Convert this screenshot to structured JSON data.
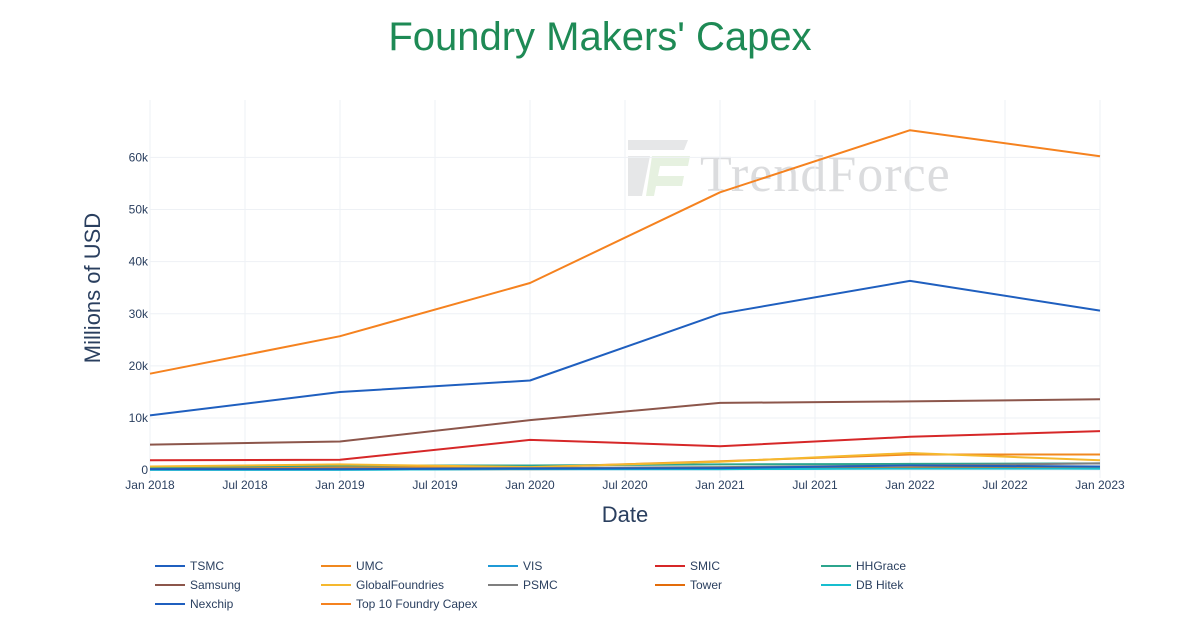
{
  "chart_data": {
    "type": "line",
    "title": "Foundry Makers' Capex",
    "xlabel": "Date",
    "ylabel": "Millions of USD",
    "x": [
      "2018-01",
      "2019-01",
      "2020-01",
      "2021-01",
      "2022-01",
      "2023-01"
    ],
    "x_tick_labels": [
      "Jan 2018",
      "Jul 2018",
      "Jan 2019",
      "Jul 2019",
      "Jan 2020",
      "Jul 2020",
      "Jan 2021",
      "Jul 2021",
      "Jan 2022",
      "Jul 2022",
      "Jan 2023"
    ],
    "y_tick_values": [
      0,
      10000,
      20000,
      30000,
      40000,
      50000,
      60000
    ],
    "y_tick_labels": [
      "0",
      "10k",
      "20k",
      "30k",
      "40k",
      "50k",
      "60k"
    ],
    "ylim": [
      -1500,
      71000
    ],
    "series": [
      {
        "name": "TSMC",
        "color": "#1f5fbf",
        "values": [
          10500,
          15000,
          17200,
          30000,
          36300,
          30600
        ]
      },
      {
        "name": "UMC",
        "color": "#f0881f",
        "values": [
          500,
          600,
          600,
          1700,
          3000,
          3000
        ]
      },
      {
        "name": "VIS",
        "color": "#1f9ad6",
        "values": [
          100,
          100,
          200,
          200,
          400,
          300
        ]
      },
      {
        "name": "SMIC",
        "color": "#d62728",
        "values": [
          1900,
          2000,
          5800,
          4600,
          6400,
          7500
        ]
      },
      {
        "name": "HHGrace",
        "color": "#2ca58d",
        "values": [
          600,
          900,
          900,
          1100,
          1200,
          1300
        ]
      },
      {
        "name": "Samsung",
        "color": "#8c564b",
        "values": [
          4900,
          5500,
          9600,
          12900,
          13200,
          13600
        ]
      },
      {
        "name": "GlobalFoundries",
        "color": "#f5b82e",
        "values": [
          700,
          1100,
          600,
          1600,
          3300,
          1900
        ]
      },
      {
        "name": "PSMC",
        "color": "#7f7f7f",
        "values": [
          200,
          300,
          400,
          600,
          900,
          1300
        ]
      },
      {
        "name": "Tower",
        "color": "#e36c0a",
        "values": [
          150,
          200,
          200,
          300,
          500,
          600
        ]
      },
      {
        "name": "DB Hitek",
        "color": "#17becf",
        "values": [
          100,
          100,
          200,
          200,
          300,
          300
        ]
      },
      {
        "name": "Nexchip",
        "color": "#1f5fbf",
        "values": [
          200,
          200,
          300,
          400,
          900,
          700
        ]
      },
      {
        "name": "Top 10 Foundry Capex",
        "color": "#f5821f",
        "values": [
          18500,
          25700,
          35900,
          53300,
          65200,
          60200
        ]
      }
    ],
    "legend_position": "bottom",
    "grid": true
  },
  "watermark": {
    "text": "TrendForce"
  },
  "colors": {
    "title": "#1e8a55",
    "axis_text": "#2a3f5f",
    "grid": "#eef1f5"
  }
}
